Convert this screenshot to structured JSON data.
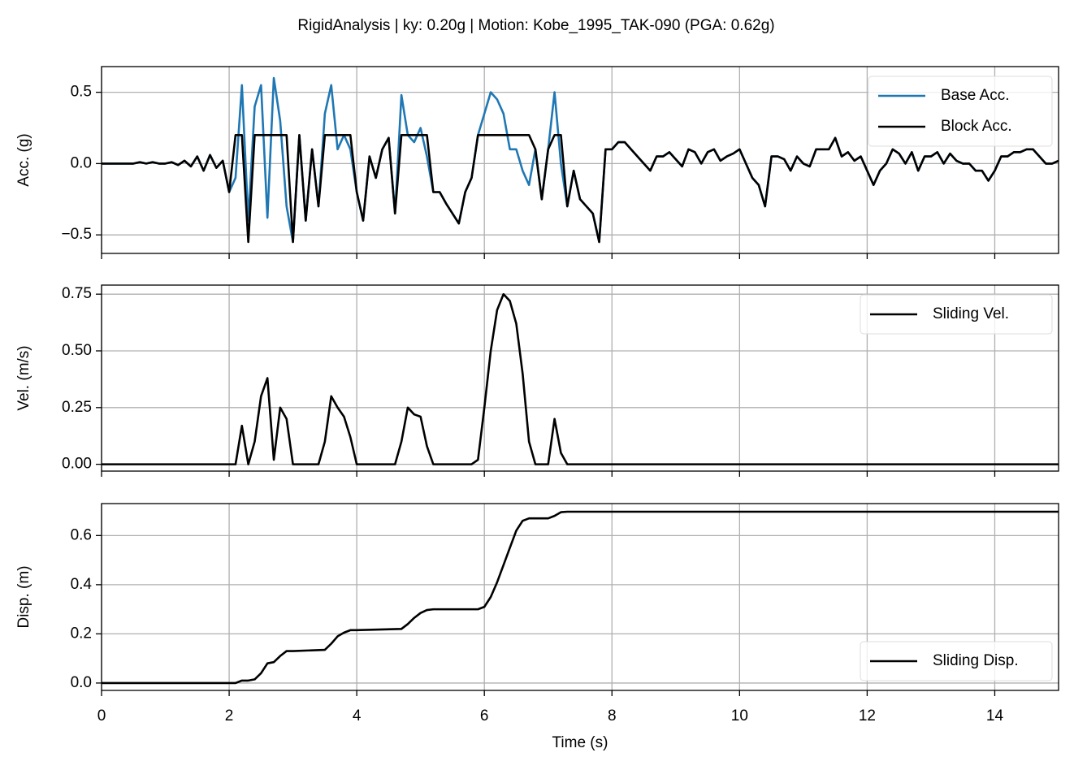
{
  "title": "RigidAnalysis | ky: 0.20g | Motion: Kobe_1995_TAK-090 (PGA: 0.62g)",
  "chart_data": [
    {
      "type": "line",
      "ylabel": "Acc. (g)",
      "xlim": [
        0,
        15
      ],
      "ylim": [
        -0.63,
        0.68
      ],
      "yticks": [
        {
          "value": -0.5,
          "label": "−0.5"
        },
        {
          "value": 0,
          "label": "0.0"
        },
        0.5
      ],
      "grid": true,
      "legend": "upper right",
      "x": [
        0,
        0.1,
        0.2,
        0.3,
        0.4,
        0.5,
        0.6,
        0.7,
        0.8,
        0.9,
        1.0,
        1.1,
        1.2,
        1.3,
        1.4,
        1.5,
        1.6,
        1.7,
        1.8,
        1.9,
        2.0,
        2.1,
        2.2,
        2.3,
        2.4,
        2.5,
        2.6,
        2.7,
        2.8,
        2.9,
        3.0,
        3.1,
        3.2,
        3.3,
        3.4,
        3.5,
        3.6,
        3.7,
        3.8,
        3.9,
        4.0,
        4.1,
        4.2,
        4.3,
        4.4,
        4.5,
        4.6,
        4.7,
        4.8,
        4.9,
        5.0,
        5.1,
        5.2,
        5.3,
        5.4,
        5.5,
        5.6,
        5.7,
        5.8,
        5.9,
        6.0,
        6.1,
        6.2,
        6.3,
        6.4,
        6.5,
        6.6,
        6.7,
        6.8,
        6.9,
        7.0,
        7.1,
        7.2,
        7.3,
        7.4,
        7.5,
        7.6,
        7.7,
        7.8,
        7.9,
        8.0,
        8.1,
        8.2,
        8.3,
        8.4,
        8.5,
        8.6,
        8.7,
        8.8,
        8.9,
        9.0,
        9.1,
        9.2,
        9.3,
        9.4,
        9.5,
        9.6,
        9.7,
        9.8,
        9.9,
        10.0,
        10.1,
        10.2,
        10.3,
        10.4,
        10.5,
        10.6,
        10.7,
        10.8,
        10.9,
        11.0,
        11.1,
        11.2,
        11.3,
        11.4,
        11.5,
        11.6,
        11.7,
        11.8,
        11.9,
        12.0,
        12.1,
        12.2,
        12.3,
        12.4,
        12.5,
        12.6,
        12.7,
        12.8,
        12.9,
        13.0,
        13.1,
        13.2,
        13.3,
        13.4,
        13.5,
        13.6,
        13.7,
        13.8,
        13.9,
        14.0,
        14.1,
        14.2,
        14.3,
        14.4,
        14.5,
        14.6,
        14.7,
        14.8,
        14.9,
        15
      ],
      "series": [
        {
          "name": "Base Acc.",
          "color": "#1f77b4",
          "values": [
            0,
            0,
            0,
            0,
            0,
            0,
            0.01,
            0,
            0.01,
            0,
            0,
            0.01,
            -0.01,
            0.02,
            -0.02,
            0.05,
            -0.05,
            0.06,
            -0.03,
            0.02,
            -0.2,
            -0.1,
            0.55,
            -0.4,
            0.4,
            0.55,
            -0.38,
            0.6,
            0.3,
            -0.3,
            -0.55,
            0.2,
            -0.4,
            0.1,
            -0.3,
            0.35,
            0.55,
            0.1,
            0.2,
            0.1,
            -0.2,
            -0.4,
            0.05,
            -0.1,
            0.1,
            0.18,
            -0.35,
            0.48,
            0.2,
            0.15,
            0.25,
            0.05,
            -0.2,
            -0.2,
            -0.28,
            -0.35,
            -0.42,
            -0.2,
            -0.1,
            0.2,
            0.35,
            0.5,
            0.45,
            0.35,
            0.1,
            0.1,
            -0.05,
            -0.15,
            0.1,
            -0.25,
            0.1,
            0.5,
            0,
            -0.3,
            -0.05,
            -0.25,
            -0.3,
            -0.35,
            -0.55,
            0.1,
            0.1,
            0.15,
            0.15,
            0.1,
            0.05,
            0,
            -0.05,
            0.05,
            0.05,
            0.08,
            0.03,
            -0.02,
            0.1,
            0.08,
            0,
            0.08,
            0.1,
            0.02,
            0.05,
            0.07,
            0.1,
            0,
            -0.1,
            -0.15,
            -0.3,
            0.05,
            0.05,
            0.03,
            -0.05,
            0.05,
            0,
            -0.02,
            0.1,
            0.1,
            0.1,
            0.18,
            0.05,
            0.08,
            0.02,
            0.05,
            -0.05,
            -0.15,
            -0.05,
            0,
            0.1,
            0.07,
            0,
            0.08,
            -0.05,
            0.05,
            0.05,
            0.08,
            0,
            0.07,
            0.02,
            0,
            0,
            -0.05,
            -0.05,
            -0.12,
            -0.05,
            0.05,
            0.05,
            0.08,
            0.08,
            0.1,
            0.1,
            0.05,
            0,
            0,
            0.02
          ]
        },
        {
          "name": "Block Acc.",
          "color": "#000000",
          "values": [
            0,
            0,
            0,
            0,
            0,
            0,
            0.01,
            0,
            0.01,
            0,
            0,
            0.01,
            -0.01,
            0.02,
            -0.02,
            0.05,
            -0.05,
            0.06,
            -0.03,
            0.02,
            -0.2,
            0.2,
            0.2,
            -0.55,
            0.2,
            0.2,
            0.2,
            0.2,
            0.2,
            0.2,
            -0.55,
            0.2,
            -0.4,
            0.1,
            -0.3,
            0.2,
            0.2,
            0.2,
            0.2,
            0.2,
            -0.2,
            -0.4,
            0.05,
            -0.1,
            0.1,
            0.18,
            -0.35,
            0.2,
            0.2,
            0.2,
            0.2,
            0.2,
            -0.2,
            -0.2,
            -0.28,
            -0.35,
            -0.42,
            -0.2,
            -0.1,
            0.2,
            0.2,
            0.2,
            0.2,
            0.2,
            0.2,
            0.2,
            0.2,
            0.2,
            0.1,
            -0.25,
            0.1,
            0.2,
            0.2,
            -0.3,
            -0.05,
            -0.25,
            -0.3,
            -0.35,
            -0.55,
            0.1,
            0.1,
            0.15,
            0.15,
            0.1,
            0.05,
            0,
            -0.05,
            0.05,
            0.05,
            0.08,
            0.03,
            -0.02,
            0.1,
            0.08,
            0,
            0.08,
            0.1,
            0.02,
            0.05,
            0.07,
            0.1,
            0,
            -0.1,
            -0.15,
            -0.3,
            0.05,
            0.05,
            0.03,
            -0.05,
            0.05,
            0,
            -0.02,
            0.1,
            0.1,
            0.1,
            0.18,
            0.05,
            0.08,
            0.02,
            0.05,
            -0.05,
            -0.15,
            -0.05,
            0,
            0.1,
            0.07,
            0,
            0.08,
            -0.05,
            0.05,
            0.05,
            0.08,
            0,
            0.07,
            0.02,
            0,
            0,
            -0.05,
            -0.05,
            -0.12,
            -0.05,
            0.05,
            0.05,
            0.08,
            0.08,
            0.1,
            0.1,
            0.05,
            0,
            0,
            0.02
          ]
        }
      ]
    },
    {
      "type": "line",
      "ylabel": "Vel. (m/s)",
      "xlim": [
        0,
        15
      ],
      "ylim": [
        -0.03,
        0.79
      ],
      "yticks": [
        {
          "value": 0,
          "label": "0.00"
        },
        0.25,
        {
          "value": 0.5,
          "label": "0.50"
        },
        0.75
      ],
      "grid": true,
      "legend": "upper right",
      "x": [
        0,
        2.0,
        2.1,
        2.2,
        2.3,
        2.4,
        2.5,
        2.6,
        2.7,
        2.8,
        2.9,
        3.0,
        3.1,
        3.2,
        3.3,
        3.4,
        3.5,
        3.6,
        3.7,
        3.8,
        3.9,
        4.0,
        4.1,
        4.2,
        4.3,
        4.4,
        4.5,
        4.6,
        4.7,
        4.8,
        4.9,
        5.0,
        5.1,
        5.2,
        5.3,
        5.4,
        5.5,
        5.6,
        5.7,
        5.8,
        5.9,
        6.0,
        6.1,
        6.2,
        6.3,
        6.4,
        6.5,
        6.6,
        6.7,
        6.8,
        6.9,
        7.0,
        7.1,
        7.2,
        7.3,
        7.4,
        7.5,
        15
      ],
      "series": [
        {
          "name": "Sliding Vel.",
          "color": "#000000",
          "values": [
            0,
            0,
            0,
            0.17,
            0,
            0.1,
            0.3,
            0.38,
            0.02,
            0.25,
            0.2,
            0,
            0,
            0,
            0,
            0,
            0.1,
            0.3,
            0.25,
            0.21,
            0.12,
            0,
            0,
            0,
            0,
            0,
            0,
            0,
            0.1,
            0.25,
            0.22,
            0.21,
            0.08,
            0,
            0,
            0,
            0,
            0,
            0,
            0,
            0.02,
            0.25,
            0.5,
            0.68,
            0.75,
            0.72,
            0.62,
            0.4,
            0.1,
            0,
            0,
            0,
            0.2,
            0.05,
            0,
            0,
            0,
            0
          ]
        }
      ]
    },
    {
      "type": "line",
      "ylabel": "Disp. (m)",
      "xlabel": "Time (s)",
      "xlim": [
        0,
        15
      ],
      "ylim": [
        -0.03,
        0.73
      ],
      "xticks": [
        0,
        2,
        4,
        6,
        8,
        10,
        12,
        14
      ],
      "yticks": [
        {
          "value": 0,
          "label": "0.0"
        },
        0.2,
        0.4,
        0.6
      ],
      "grid": true,
      "legend": "lower right",
      "x": [
        0,
        2.0,
        2.1,
        2.2,
        2.3,
        2.4,
        2.5,
        2.6,
        2.7,
        2.8,
        2.9,
        3.0,
        3.5,
        3.6,
        3.7,
        3.8,
        3.9,
        4.0,
        4.7,
        4.8,
        4.9,
        5.0,
        5.1,
        5.2,
        5.9,
        6.0,
        6.1,
        6.2,
        6.3,
        6.4,
        6.5,
        6.6,
        6.7,
        6.8,
        7.0,
        7.1,
        7.2,
        7.3,
        15
      ],
      "series": [
        {
          "name": "Sliding Disp.",
          "color": "#000000",
          "values": [
            0,
            0,
            0,
            0.01,
            0.01,
            0.015,
            0.04,
            0.08,
            0.085,
            0.11,
            0.13,
            0.13,
            0.135,
            0.16,
            0.19,
            0.205,
            0.215,
            0.215,
            0.22,
            0.24,
            0.265,
            0.285,
            0.297,
            0.3,
            0.3,
            0.31,
            0.35,
            0.41,
            0.48,
            0.55,
            0.62,
            0.66,
            0.67,
            0.67,
            0.67,
            0.68,
            0.695,
            0.697,
            0.697
          ]
        }
      ]
    }
  ]
}
